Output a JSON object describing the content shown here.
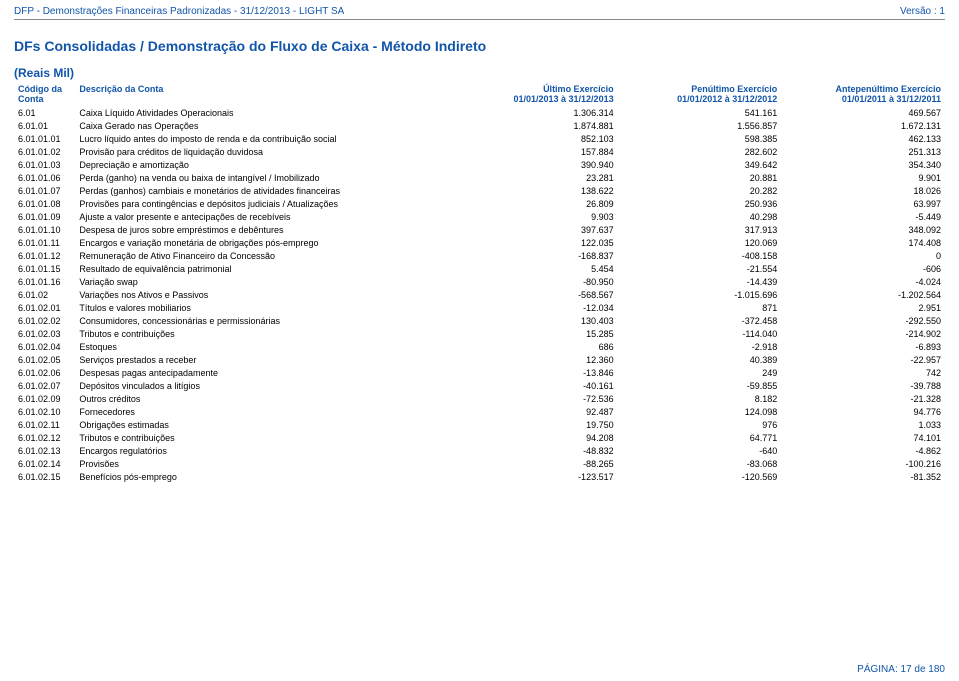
{
  "header": {
    "left": "DFP - Demonstrações Financeiras Padronizadas - 31/12/2013 - LIGHT SA",
    "right": "Versão : 1"
  },
  "title": "DFs Consolidadas / Demonstração do Fluxo de Caixa  - Método Indireto",
  "units": "(Reais Mil)",
  "columns": {
    "code": {
      "line1": "Código da",
      "line2": "Conta"
    },
    "desc": {
      "line1": "Descrição da Conta",
      "line2": ""
    },
    "last": {
      "line1": "Último Exercício",
      "line2": "01/01/2013 à 31/12/2013"
    },
    "prev": {
      "line1": "Penúltimo Exercício",
      "line2": "01/01/2012 à 31/12/2012"
    },
    "ante": {
      "line1": "Antepenúltimo Exercício",
      "line2": "01/01/2011 à 31/12/2011"
    }
  },
  "rows": [
    {
      "code": "6.01",
      "desc": "Caixa Líquido Atividades Operacionais",
      "v1": "1.306.314",
      "v2": "541.161",
      "v3": "469.567"
    },
    {
      "code": "6.01.01",
      "desc": "Caixa Gerado nas Operações",
      "v1": "1.874.881",
      "v2": "1.556.857",
      "v3": "1.672.131"
    },
    {
      "code": "6.01.01.01",
      "desc": "Lucro líquido antes do imposto de renda e da contribuição social",
      "v1": "852.103",
      "v2": "598.385",
      "v3": "462.133"
    },
    {
      "code": "6.01.01.02",
      "desc": "Provisão para créditos de liquidação duvidosa",
      "v1": "157.884",
      "v2": "282.602",
      "v3": "251.313"
    },
    {
      "code": "6.01.01.03",
      "desc": "Depreciação e amortização",
      "v1": "390.940",
      "v2": "349.642",
      "v3": "354.340"
    },
    {
      "code": "6.01.01.06",
      "desc": "Perda (ganho) na venda ou baixa de intangível / Imobilizado",
      "v1": "23.281",
      "v2": "20.881",
      "v3": "9.901"
    },
    {
      "code": "6.01.01.07",
      "desc": "Perdas (ganhos) cambiais e monetários de atividades financeiras",
      "v1": "138.622",
      "v2": "20.282",
      "v3": "18.026"
    },
    {
      "code": "6.01.01.08",
      "desc": "Provisões para contingências e depósitos judiciais / Atualizações",
      "v1": "26.809",
      "v2": "250.936",
      "v3": "63.997"
    },
    {
      "code": "6.01.01.09",
      "desc": "Ajuste a valor presente e antecipações de recebíveis",
      "v1": "9.903",
      "v2": "40.298",
      "v3": "-5.449"
    },
    {
      "code": "6.01.01.10",
      "desc": "Despesa de juros sobre empréstimos e debêntures",
      "v1": "397.637",
      "v2": "317.913",
      "v3": "348.092"
    },
    {
      "code": "6.01.01.11",
      "desc": "Encargos e variação monetária de obrigações pós-emprego",
      "v1": "122.035",
      "v2": "120.069",
      "v3": "174.408"
    },
    {
      "code": "6.01.01.12",
      "desc": "Remuneração de Ativo Financeiro da Concessão",
      "v1": "-168.837",
      "v2": "-408.158",
      "v3": "0"
    },
    {
      "code": "6.01.01.15",
      "desc": "Resultado de equivalência patrimonial",
      "v1": "5.454",
      "v2": "-21.554",
      "v3": "-606"
    },
    {
      "code": "6.01.01.16",
      "desc": "Variação swap",
      "v1": "-80.950",
      "v2": "-14.439",
      "v3": "-4.024"
    },
    {
      "code": "6.01.02",
      "desc": "Variações nos Ativos e Passivos",
      "v1": "-568.567",
      "v2": "-1.015.696",
      "v3": "-1.202.564"
    },
    {
      "code": "6.01.02.01",
      "desc": "Títulos e valores mobiliarios",
      "v1": "-12.034",
      "v2": "871",
      "v3": "2.951"
    },
    {
      "code": "6.01.02.02",
      "desc": "Consumidores, concessionárias e permissionárias",
      "v1": "130.403",
      "v2": "-372.458",
      "v3": "-292.550"
    },
    {
      "code": "6.01.02.03",
      "desc": "Tributos e contribuições",
      "v1": "15.285",
      "v2": "-114.040",
      "v3": "-214.902"
    },
    {
      "code": "6.01.02.04",
      "desc": "Estoques",
      "v1": "686",
      "v2": "-2.918",
      "v3": "-6.893"
    },
    {
      "code": "6.01.02.05",
      "desc": "Serviços prestados a receber",
      "v1": "12.360",
      "v2": "40.389",
      "v3": "-22.957"
    },
    {
      "code": "6.01.02.06",
      "desc": "Despesas pagas antecipadamente",
      "v1": "-13.846",
      "v2": "249",
      "v3": "742"
    },
    {
      "code": "6.01.02.07",
      "desc": "Depósitos vinculados a litígios",
      "v1": "-40.161",
      "v2": "-59.855",
      "v3": "-39.788"
    },
    {
      "code": "6.01.02.09",
      "desc": "Outros créditos",
      "v1": "-72.536",
      "v2": "8.182",
      "v3": "-21.328"
    },
    {
      "code": "6.01.02.10",
      "desc": "Fornecedores",
      "v1": "92.487",
      "v2": "124.098",
      "v3": "94.776"
    },
    {
      "code": "6.01.02.11",
      "desc": "Obrigações estimadas",
      "v1": "19.750",
      "v2": "976",
      "v3": "1.033"
    },
    {
      "code": "6.01.02.12",
      "desc": "Tributos e contribuições",
      "v1": "94.208",
      "v2": "64.771",
      "v3": "74.101"
    },
    {
      "code": "6.01.02.13",
      "desc": "Encargos regulatórios",
      "v1": "-48.832",
      "v2": "-640",
      "v3": "-4.862"
    },
    {
      "code": "6.01.02.14",
      "desc": "Provisões",
      "v1": "-88.265",
      "v2": "-83.068",
      "v3": "-100.216"
    },
    {
      "code": "6.01.02.15",
      "desc": "Benefícios pós-emprego",
      "v1": "-123.517",
      "v2": "-120.569",
      "v3": "-81.352"
    }
  ],
  "footer": "PÁGINA: 17 de 180",
  "style": {
    "text_color": "#000000",
    "header_color": "#1155aa",
    "font_size_body": 9,
    "font_size_title": 14
  }
}
